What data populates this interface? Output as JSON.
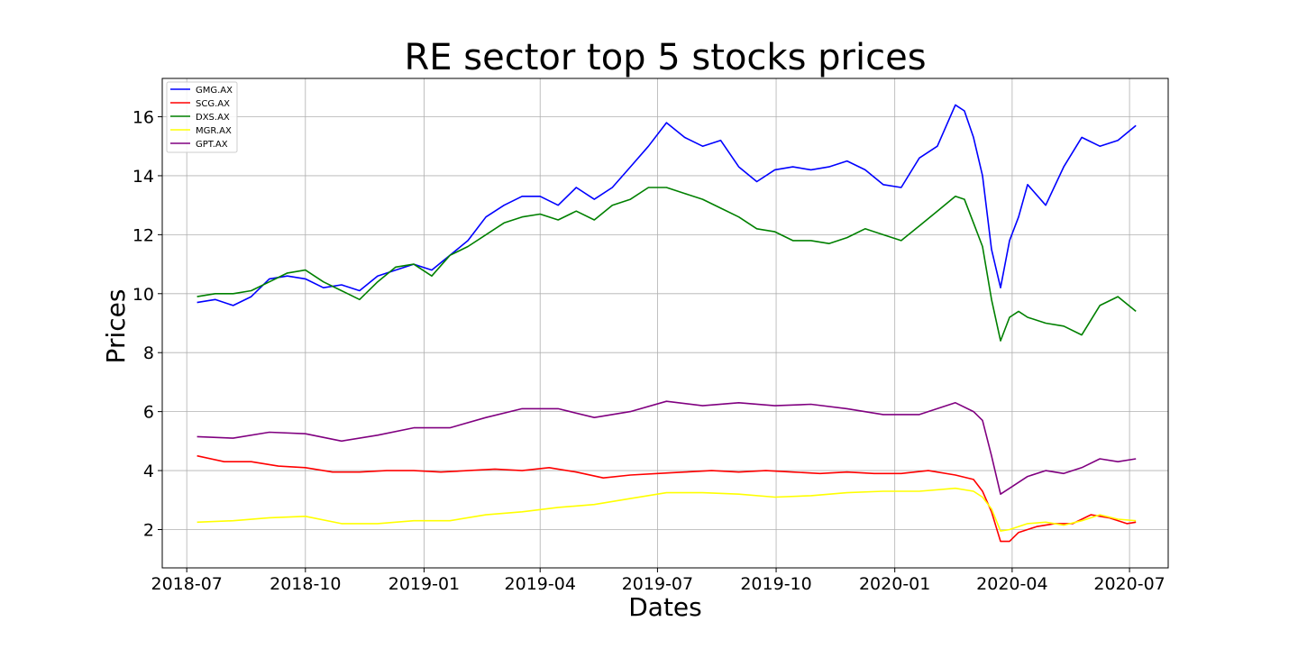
{
  "chart_data": {
    "type": "line",
    "title": "RE sector top 5 stocks prices",
    "xlabel": "Dates",
    "ylabel": "Prices",
    "xlim": [
      "2018-06-12",
      "2020-07-31"
    ],
    "ylim": [
      0.7,
      17.3
    ],
    "xticks": [
      "2018-07",
      "2018-10",
      "2019-01",
      "2019-04",
      "2019-07",
      "2019-10",
      "2020-01",
      "2020-04",
      "2020-07"
    ],
    "yticks": [
      2,
      4,
      6,
      8,
      10,
      12,
      14,
      16
    ],
    "grid": true,
    "legend_position": "top-left",
    "series": [
      {
        "name": "GMG.AX",
        "color": "#0000ff",
        "points": [
          [
            "2018-07-09",
            9.7
          ],
          [
            "2018-07-23",
            9.8
          ],
          [
            "2018-08-06",
            9.6
          ],
          [
            "2018-08-20",
            9.9
          ],
          [
            "2018-09-03",
            10.5
          ],
          [
            "2018-09-17",
            10.6
          ],
          [
            "2018-10-01",
            10.5
          ],
          [
            "2018-10-15",
            10.2
          ],
          [
            "2018-10-29",
            10.3
          ],
          [
            "2018-11-12",
            10.1
          ],
          [
            "2018-11-26",
            10.6
          ],
          [
            "2018-12-10",
            10.8
          ],
          [
            "2018-12-24",
            11.0
          ],
          [
            "2019-01-07",
            10.8
          ],
          [
            "2019-01-21",
            11.3
          ],
          [
            "2019-02-04",
            11.8
          ],
          [
            "2019-02-18",
            12.6
          ],
          [
            "2019-03-04",
            13.0
          ],
          [
            "2019-03-18",
            13.3
          ],
          [
            "2019-04-01",
            13.3
          ],
          [
            "2019-04-15",
            13.0
          ],
          [
            "2019-04-29",
            13.6
          ],
          [
            "2019-05-13",
            13.2
          ],
          [
            "2019-05-27",
            13.6
          ],
          [
            "2019-06-10",
            14.3
          ],
          [
            "2019-06-24",
            15.0
          ],
          [
            "2019-07-08",
            15.8
          ],
          [
            "2019-07-22",
            15.3
          ],
          [
            "2019-08-05",
            15.0
          ],
          [
            "2019-08-19",
            15.2
          ],
          [
            "2019-09-02",
            14.3
          ],
          [
            "2019-09-16",
            13.8
          ],
          [
            "2019-09-30",
            14.2
          ],
          [
            "2019-10-14",
            14.3
          ],
          [
            "2019-10-28",
            14.2
          ],
          [
            "2019-11-11",
            14.3
          ],
          [
            "2019-11-25",
            14.5
          ],
          [
            "2019-12-09",
            14.2
          ],
          [
            "2019-12-23",
            13.7
          ],
          [
            "2020-01-06",
            13.6
          ],
          [
            "2020-01-20",
            14.6
          ],
          [
            "2020-02-03",
            15.0
          ],
          [
            "2020-02-17",
            16.4
          ],
          [
            "2020-02-24",
            16.2
          ],
          [
            "2020-03-02",
            15.3
          ],
          [
            "2020-03-09",
            14.0
          ],
          [
            "2020-03-16",
            11.5
          ],
          [
            "2020-03-23",
            10.2
          ],
          [
            "2020-03-30",
            11.8
          ],
          [
            "2020-04-06",
            12.6
          ],
          [
            "2020-04-13",
            13.7
          ],
          [
            "2020-04-27",
            13.0
          ],
          [
            "2020-05-11",
            14.3
          ],
          [
            "2020-05-25",
            15.3
          ],
          [
            "2020-06-08",
            15.0
          ],
          [
            "2020-06-22",
            15.2
          ],
          [
            "2020-07-06",
            15.7
          ]
        ]
      },
      {
        "name": "SCG.AX",
        "color": "#ff0000",
        "points": [
          [
            "2018-07-09",
            4.5
          ],
          [
            "2018-07-30",
            4.3
          ],
          [
            "2018-08-20",
            4.3
          ],
          [
            "2018-09-10",
            4.15
          ],
          [
            "2018-10-01",
            4.1
          ],
          [
            "2018-10-22",
            3.95
          ],
          [
            "2018-11-12",
            3.95
          ],
          [
            "2018-12-03",
            4.0
          ],
          [
            "2018-12-24",
            4.0
          ],
          [
            "2019-01-14",
            3.95
          ],
          [
            "2019-02-04",
            4.0
          ],
          [
            "2019-02-25",
            4.05
          ],
          [
            "2019-03-18",
            4.0
          ],
          [
            "2019-04-08",
            4.1
          ],
          [
            "2019-04-29",
            3.95
          ],
          [
            "2019-05-20",
            3.75
          ],
          [
            "2019-06-10",
            3.85
          ],
          [
            "2019-07-01",
            3.9
          ],
          [
            "2019-07-22",
            3.95
          ],
          [
            "2019-08-12",
            4.0
          ],
          [
            "2019-09-02",
            3.95
          ],
          [
            "2019-09-23",
            4.0
          ],
          [
            "2019-10-14",
            3.95
          ],
          [
            "2019-11-04",
            3.9
          ],
          [
            "2019-11-25",
            3.95
          ],
          [
            "2019-12-16",
            3.9
          ],
          [
            "2020-01-06",
            3.9
          ],
          [
            "2020-01-27",
            4.0
          ],
          [
            "2020-02-17",
            3.85
          ],
          [
            "2020-03-02",
            3.7
          ],
          [
            "2020-03-09",
            3.3
          ],
          [
            "2020-03-16",
            2.6
          ],
          [
            "2020-03-23",
            1.6
          ],
          [
            "2020-03-30",
            1.6
          ],
          [
            "2020-04-06",
            1.9
          ],
          [
            "2020-04-20",
            2.1
          ],
          [
            "2020-05-04",
            2.2
          ],
          [
            "2020-05-18",
            2.2
          ],
          [
            "2020-06-01",
            2.5
          ],
          [
            "2020-06-15",
            2.4
          ],
          [
            "2020-06-29",
            2.2
          ],
          [
            "2020-07-06",
            2.25
          ]
        ]
      },
      {
        "name": "DXS.AX",
        "color": "#008000",
        "points": [
          [
            "2018-07-09",
            9.9
          ],
          [
            "2018-07-23",
            10.0
          ],
          [
            "2018-08-06",
            10.0
          ],
          [
            "2018-08-20",
            10.1
          ],
          [
            "2018-09-03",
            10.4
          ],
          [
            "2018-09-17",
            10.7
          ],
          [
            "2018-10-01",
            10.8
          ],
          [
            "2018-10-15",
            10.4
          ],
          [
            "2018-10-29",
            10.1
          ],
          [
            "2018-11-12",
            9.8
          ],
          [
            "2018-11-26",
            10.4
          ],
          [
            "2018-12-10",
            10.9
          ],
          [
            "2018-12-24",
            11.0
          ],
          [
            "2019-01-07",
            10.6
          ],
          [
            "2019-01-21",
            11.3
          ],
          [
            "2019-02-04",
            11.6
          ],
          [
            "2019-02-18",
            12.0
          ],
          [
            "2019-03-04",
            12.4
          ],
          [
            "2019-03-18",
            12.6
          ],
          [
            "2019-04-01",
            12.7
          ],
          [
            "2019-04-15",
            12.5
          ],
          [
            "2019-04-29",
            12.8
          ],
          [
            "2019-05-13",
            12.5
          ],
          [
            "2019-05-27",
            13.0
          ],
          [
            "2019-06-10",
            13.2
          ],
          [
            "2019-06-24",
            13.6
          ],
          [
            "2019-07-08",
            13.6
          ],
          [
            "2019-07-22",
            13.4
          ],
          [
            "2019-08-05",
            13.2
          ],
          [
            "2019-08-19",
            12.9
          ],
          [
            "2019-09-02",
            12.6
          ],
          [
            "2019-09-16",
            12.2
          ],
          [
            "2019-09-30",
            12.1
          ],
          [
            "2019-10-14",
            11.8
          ],
          [
            "2019-10-28",
            11.8
          ],
          [
            "2019-11-11",
            11.7
          ],
          [
            "2019-11-25",
            11.9
          ],
          [
            "2019-12-09",
            12.2
          ],
          [
            "2019-12-23",
            12.0
          ],
          [
            "2020-01-06",
            11.8
          ],
          [
            "2020-01-20",
            12.3
          ],
          [
            "2020-02-03",
            12.8
          ],
          [
            "2020-02-17",
            13.3
          ],
          [
            "2020-02-24",
            13.2
          ],
          [
            "2020-03-02",
            12.4
          ],
          [
            "2020-03-09",
            11.6
          ],
          [
            "2020-03-16",
            9.8
          ],
          [
            "2020-03-23",
            8.4
          ],
          [
            "2020-03-30",
            9.2
          ],
          [
            "2020-04-06",
            9.4
          ],
          [
            "2020-04-13",
            9.2
          ],
          [
            "2020-04-27",
            9.0
          ],
          [
            "2020-05-11",
            8.9
          ],
          [
            "2020-05-25",
            8.6
          ],
          [
            "2020-06-08",
            9.6
          ],
          [
            "2020-06-22",
            9.9
          ],
          [
            "2020-07-06",
            9.4
          ]
        ]
      },
      {
        "name": "MGR.AX",
        "color": "#ffff00",
        "points": [
          [
            "2018-07-09",
            2.25
          ],
          [
            "2018-08-06",
            2.3
          ],
          [
            "2018-09-03",
            2.4
          ],
          [
            "2018-10-01",
            2.45
          ],
          [
            "2018-10-29",
            2.2
          ],
          [
            "2018-11-26",
            2.2
          ],
          [
            "2018-12-24",
            2.3
          ],
          [
            "2019-01-21",
            2.3
          ],
          [
            "2019-02-18",
            2.5
          ],
          [
            "2019-03-18",
            2.6
          ],
          [
            "2019-04-15",
            2.75
          ],
          [
            "2019-05-13",
            2.85
          ],
          [
            "2019-06-10",
            3.05
          ],
          [
            "2019-07-08",
            3.25
          ],
          [
            "2019-08-05",
            3.25
          ],
          [
            "2019-09-02",
            3.2
          ],
          [
            "2019-09-30",
            3.1
          ],
          [
            "2019-10-28",
            3.15
          ],
          [
            "2019-11-25",
            3.25
          ],
          [
            "2019-12-23",
            3.3
          ],
          [
            "2020-01-20",
            3.3
          ],
          [
            "2020-02-17",
            3.4
          ],
          [
            "2020-03-02",
            3.3
          ],
          [
            "2020-03-09",
            3.1
          ],
          [
            "2020-03-16",
            2.7
          ],
          [
            "2020-03-23",
            1.95
          ],
          [
            "2020-03-30",
            2.0
          ],
          [
            "2020-04-13",
            2.2
          ],
          [
            "2020-04-27",
            2.25
          ],
          [
            "2020-05-11",
            2.15
          ],
          [
            "2020-05-25",
            2.3
          ],
          [
            "2020-06-08",
            2.5
          ],
          [
            "2020-06-22",
            2.35
          ],
          [
            "2020-07-06",
            2.3
          ]
        ]
      },
      {
        "name": "GPT.AX",
        "color": "#800080",
        "points": [
          [
            "2018-07-09",
            5.15
          ],
          [
            "2018-08-06",
            5.1
          ],
          [
            "2018-09-03",
            5.3
          ],
          [
            "2018-10-01",
            5.25
          ],
          [
            "2018-10-29",
            5.0
          ],
          [
            "2018-11-26",
            5.2
          ],
          [
            "2018-12-24",
            5.45
          ],
          [
            "2019-01-21",
            5.45
          ],
          [
            "2019-02-18",
            5.8
          ],
          [
            "2019-03-18",
            6.1
          ],
          [
            "2019-04-15",
            6.1
          ],
          [
            "2019-05-13",
            5.8
          ],
          [
            "2019-06-10",
            6.0
          ],
          [
            "2019-07-08",
            6.35
          ],
          [
            "2019-08-05",
            6.2
          ],
          [
            "2019-09-02",
            6.3
          ],
          [
            "2019-09-30",
            6.2
          ],
          [
            "2019-10-28",
            6.25
          ],
          [
            "2019-11-25",
            6.1
          ],
          [
            "2019-12-23",
            5.9
          ],
          [
            "2020-01-20",
            5.9
          ],
          [
            "2020-02-17",
            6.3
          ],
          [
            "2020-03-02",
            6.0
          ],
          [
            "2020-03-09",
            5.7
          ],
          [
            "2020-03-16",
            4.5
          ],
          [
            "2020-03-23",
            3.2
          ],
          [
            "2020-03-30",
            3.4
          ],
          [
            "2020-04-13",
            3.8
          ],
          [
            "2020-04-27",
            4.0
          ],
          [
            "2020-05-11",
            3.9
          ],
          [
            "2020-05-25",
            4.1
          ],
          [
            "2020-06-08",
            4.4
          ],
          [
            "2020-06-22",
            4.3
          ],
          [
            "2020-07-06",
            4.4
          ]
        ]
      }
    ]
  }
}
